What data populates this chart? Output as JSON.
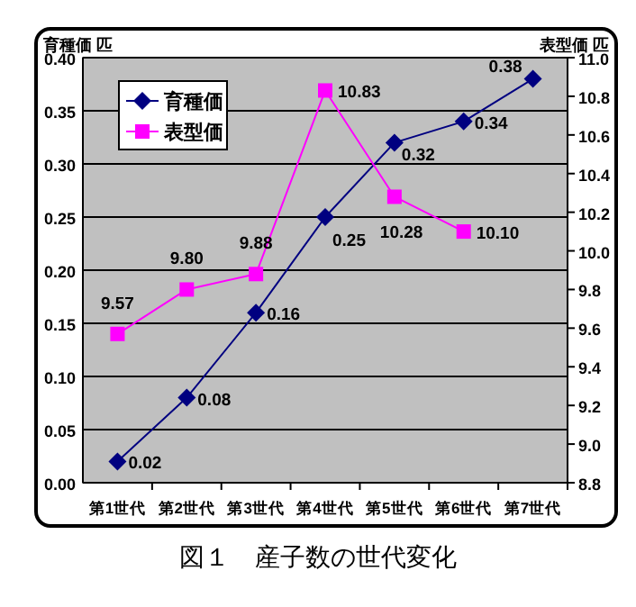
{
  "chart_data": {
    "type": "line",
    "title": "図１　産子数の世代変化",
    "ylabel": "育種価 匹",
    "y2label": "表型価 匹",
    "categories": [
      "第1世代",
      "第2世代",
      "第3世代",
      "第4世代",
      "第5世代",
      "第6世代",
      "第7世代"
    ],
    "series": [
      {
        "name": "育種価",
        "color": "#000080",
        "marker": "diamond",
        "values": [
          0.02,
          0.08,
          0.16,
          0.25,
          0.32,
          0.34,
          0.38
        ],
        "value_labels": [
          "0.02",
          "0.08",
          "0.16",
          "0.25",
          "0.32",
          "0.34",
          "0.38"
        ]
      },
      {
        "name": "表型価",
        "color": "#ff00ff",
        "marker": "square",
        "axis": "y2",
        "values": [
          9.57,
          9.8,
          9.88,
          10.83,
          10.28,
          10.1,
          null
        ],
        "value_labels": [
          "9.57",
          "9.80",
          "9.88",
          "10.83",
          "10.28",
          "10.10",
          null
        ]
      }
    ],
    "ylim": [
      0,
      0.4
    ],
    "yticks": [
      {
        "value": 0,
        "label": "0.00"
      },
      {
        "value": 0.05,
        "label": "0.05"
      },
      {
        "value": 0.1,
        "label": "0.10"
      },
      {
        "value": 0.15,
        "label": "0.15"
      },
      {
        "value": 0.2,
        "label": "0.20"
      },
      {
        "value": 0.25,
        "label": "0.25"
      },
      {
        "value": 0.3,
        "label": "0.30"
      },
      {
        "value": 0.35,
        "label": "0.35"
      },
      {
        "value": 0.4,
        "label": "0.40"
      }
    ],
    "y2lim": [
      8.8,
      11.0
    ],
    "y2ticks": [
      {
        "value": 8.8,
        "label": "8.8"
      },
      {
        "value": 9.0,
        "label": "9.0"
      },
      {
        "value": 9.2,
        "label": "9.2"
      },
      {
        "value": 9.4,
        "label": "9.4"
      },
      {
        "value": 9.6,
        "label": "9.6"
      },
      {
        "value": 9.8,
        "label": "9.8"
      },
      {
        "value": 10.0,
        "label": "10.0"
      },
      {
        "value": 10.2,
        "label": "10.2"
      },
      {
        "value": 10.4,
        "label": "10.4"
      },
      {
        "value": 10.6,
        "label": "10.6"
      },
      {
        "value": 10.8,
        "label": "10.8"
      },
      {
        "value": 11.0,
        "label": "11.0"
      }
    ],
    "grid": "y",
    "legend": "top left"
  }
}
